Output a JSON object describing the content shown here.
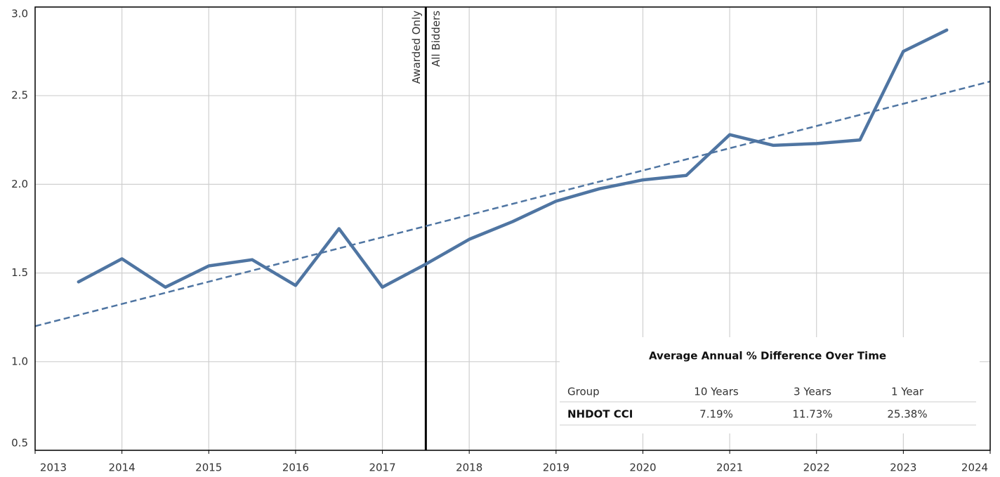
{
  "chart_data": {
    "type": "line",
    "x": [
      2013.5,
      2014,
      2014.5,
      2015,
      2015.5,
      2016,
      2016.5,
      2017,
      2017.5,
      2018,
      2018.5,
      2019,
      2019.5,
      2020,
      2020.5,
      2021,
      2021.5,
      2022,
      2022.5,
      2023,
      2023.5
    ],
    "series": [
      {
        "color": "#4f75a2",
        "values": [
          1.45,
          1.58,
          1.42,
          1.54,
          1.575,
          1.43,
          1.75,
          1.42,
          1.55,
          1.69,
          1.79,
          1.905,
          1.975,
          2.025,
          2.05,
          2.28,
          2.22,
          2.23,
          2.25,
          2.75,
          2.87
        ]
      }
    ],
    "trend": {
      "color": "#4f75a2",
      "x": [
        2013,
        2024
      ],
      "values": [
        1.2,
        2.58
      ]
    },
    "reference_line": {
      "x": 2017.5,
      "color": "#000000",
      "left_label": "Awarded Only",
      "right_label": "All Bidders"
    },
    "xlim": [
      2013,
      2024
    ],
    "xticks": [
      2013,
      2014,
      2015,
      2016,
      2017,
      2018,
      2019,
      2020,
      2021,
      2022,
      2023,
      2024
    ],
    "ylim": [
      0.5,
      3.0
    ],
    "yticks": [
      {
        "value": 0.5,
        "label": "0.5"
      },
      {
        "value": 1.0,
        "label": "1.0"
      },
      {
        "value": 1.5,
        "label": "1.5"
      },
      {
        "value": 2.0,
        "label": "2.0"
      },
      {
        "value": 2.5,
        "label": "2.5"
      },
      {
        "value": 3.0,
        "label": "3.0"
      }
    ],
    "grid": true
  },
  "table": {
    "title": "Average Annual % Difference Over Time",
    "header": [
      "Group",
      "10 Years",
      "3 Years",
      "1 Year"
    ],
    "rows": [
      [
        "NHDOT CCI",
        "7.19%",
        "11.73%",
        "25.38%"
      ]
    ]
  }
}
